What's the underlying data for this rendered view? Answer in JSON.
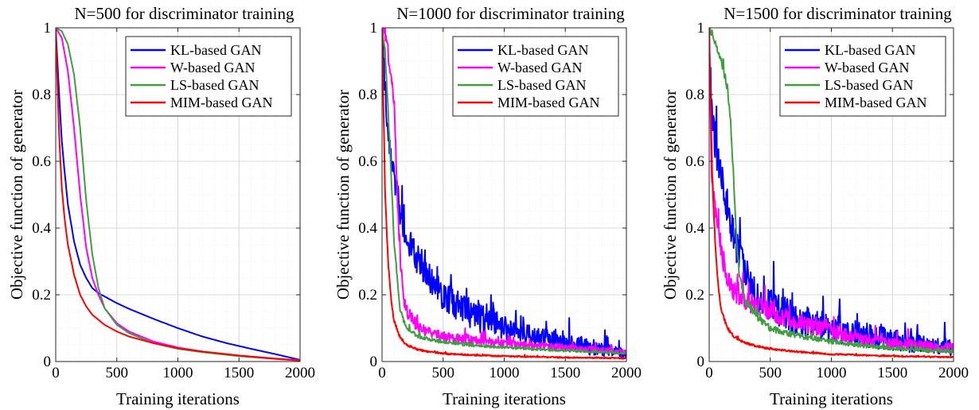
{
  "chart_data": [
    {
      "type": "line",
      "title": "N=500 for discriminator training",
      "xlabel": "Training iterations",
      "ylabel": "Objective function of generator",
      "xlim": [
        0,
        2000
      ],
      "ylim": [
        0,
        1
      ],
      "xticks": [
        "0",
        "500",
        "1000",
        "1500",
        "2000"
      ],
      "yticks": [
        "0",
        "0.2",
        "0.4",
        "0.6",
        "0.8",
        "1"
      ],
      "grid": true,
      "legend_position": "top-right",
      "series": [
        {
          "name": "KL-based GAN",
          "color": "#0000ff",
          "noise": 0,
          "x": [
            0,
            25,
            50,
            75,
            100,
            150,
            200,
            250,
            300,
            350,
            400,
            500,
            600,
            800,
            1000,
            1200,
            1400,
            1600,
            1800,
            2000
          ],
          "y": [
            1.0,
            0.82,
            0.66,
            0.56,
            0.47,
            0.36,
            0.29,
            0.25,
            0.22,
            0.205,
            0.195,
            0.175,
            0.158,
            0.128,
            0.1,
            0.075,
            0.055,
            0.038,
            0.022,
            0.005
          ]
        },
        {
          "name": "W-based GAN",
          "color": "#ff00ff",
          "noise": 0,
          "x": [
            0,
            50,
            100,
            150,
            200,
            250,
            300,
            350,
            400,
            500,
            600,
            800,
            1000,
            1200,
            1500,
            1800,
            2000
          ],
          "y": [
            1.0,
            0.97,
            0.87,
            0.7,
            0.5,
            0.34,
            0.25,
            0.2,
            0.16,
            0.115,
            0.09,
            0.06,
            0.042,
            0.03,
            0.018,
            0.009,
            0.004
          ]
        },
        {
          "name": "LS-based GAN",
          "color": "#3f9f3f",
          "noise": 0,
          "x": [
            0,
            50,
            100,
            150,
            200,
            250,
            300,
            350,
            400,
            500,
            600,
            800,
            1000,
            1200,
            1500,
            1800,
            2000
          ],
          "y": [
            1.0,
            0.99,
            0.95,
            0.86,
            0.7,
            0.48,
            0.32,
            0.22,
            0.16,
            0.11,
            0.085,
            0.055,
            0.038,
            0.028,
            0.016,
            0.008,
            0.003
          ]
        },
        {
          "name": "MIM-based GAN",
          "color": "#ff0000",
          "noise": 0,
          "x": [
            0,
            25,
            50,
            75,
            100,
            150,
            200,
            250,
            300,
            400,
            500,
            600,
            800,
            1000,
            1200,
            1500,
            1800,
            2000
          ],
          "y": [
            1.0,
            0.7,
            0.52,
            0.42,
            0.35,
            0.26,
            0.2,
            0.165,
            0.14,
            0.11,
            0.09,
            0.075,
            0.055,
            0.04,
            0.03,
            0.018,
            0.008,
            0.003
          ]
        }
      ]
    },
    {
      "type": "line",
      "title": "N=1000 for discriminator training",
      "xlabel": "Training iterations",
      "ylabel": "Objective function of generator",
      "xlim": [
        0,
        2000
      ],
      "ylim": [
        0,
        1
      ],
      "xticks": [
        "0",
        "500",
        "1000",
        "1500",
        "2000"
      ],
      "yticks": [
        "0",
        "0.2",
        "0.4",
        "0.6",
        "0.8",
        "1"
      ],
      "grid": true,
      "legend_position": "top-right",
      "series": [
        {
          "name": "KL-based GAN",
          "color": "#0000ff",
          "noise": 0.045,
          "x": [
            0,
            25,
            50,
            75,
            100,
            150,
            200,
            250,
            300,
            400,
            500,
            600,
            700,
            800,
            1000,
            1200,
            1400,
            1600,
            1800,
            2000
          ],
          "y": [
            1.0,
            0.82,
            0.7,
            0.62,
            0.55,
            0.45,
            0.38,
            0.33,
            0.3,
            0.24,
            0.2,
            0.17,
            0.15,
            0.13,
            0.1,
            0.08,
            0.065,
            0.05,
            0.035,
            0.02
          ]
        },
        {
          "name": "W-based GAN",
          "color": "#ff00ff",
          "noise": 0.02,
          "x": [
            0,
            25,
            50,
            75,
            100,
            125,
            150,
            175,
            200,
            300,
            400,
            500,
            700,
            1000,
            1200,
            1500,
            1800,
            2000
          ],
          "y": [
            1.0,
            0.98,
            0.92,
            0.86,
            0.78,
            0.5,
            0.3,
            0.2,
            0.15,
            0.1,
            0.085,
            0.075,
            0.065,
            0.055,
            0.048,
            0.042,
            0.035,
            0.03
          ]
        },
        {
          "name": "LS-based GAN",
          "color": "#3f9f3f",
          "noise": 0.008,
          "x": [
            0,
            25,
            50,
            75,
            100,
            150,
            200,
            300,
            400,
            500,
            700,
            1000,
            1200,
            1500,
            1800,
            2000
          ],
          "y": [
            1.0,
            0.93,
            0.75,
            0.55,
            0.35,
            0.15,
            0.1,
            0.075,
            0.065,
            0.058,
            0.05,
            0.042,
            0.038,
            0.033,
            0.028,
            0.025
          ]
        },
        {
          "name": "MIM-based GAN",
          "color": "#ff0000",
          "noise": 0.006,
          "x": [
            0,
            25,
            50,
            75,
            100,
            150,
            200,
            300,
            400,
            500,
            700,
            1000,
            1500,
            2000
          ],
          "y": [
            1.0,
            0.5,
            0.3,
            0.18,
            0.12,
            0.07,
            0.05,
            0.035,
            0.028,
            0.024,
            0.02,
            0.016,
            0.012,
            0.01
          ]
        }
      ]
    },
    {
      "type": "line",
      "title": "N=1500 for discriminator training",
      "xlabel": "Training iterations",
      "ylabel": "Objective function of generator",
      "xlim": [
        0,
        2000
      ],
      "ylim": [
        0,
        1
      ],
      "xticks": [
        "0",
        "500",
        "1000",
        "1500",
        "2000"
      ],
      "yticks": [
        "0",
        "0.2",
        "0.4",
        "0.6",
        "0.8",
        "1"
      ],
      "grid": true,
      "legend_position": "top-right",
      "series": [
        {
          "name": "KL-based GAN",
          "color": "#0000ff",
          "noise": 0.05,
          "x": [
            0,
            25,
            50,
            75,
            100,
            150,
            200,
            250,
            300,
            400,
            500,
            700,
            1000,
            1200,
            1500,
            1800,
            2000
          ],
          "y": [
            0.92,
            0.75,
            0.65,
            0.6,
            0.55,
            0.45,
            0.38,
            0.31,
            0.26,
            0.2,
            0.17,
            0.13,
            0.1,
            0.085,
            0.065,
            0.05,
            0.04
          ]
        },
        {
          "name": "W-based GAN",
          "color": "#ff00ff",
          "noise": 0.03,
          "x": [
            0,
            20,
            50,
            75,
            100,
            150,
            200,
            300,
            400,
            500,
            700,
            1000,
            1200,
            1500,
            1800,
            2000
          ],
          "y": [
            1.0,
            0.55,
            0.45,
            0.38,
            0.32,
            0.25,
            0.21,
            0.18,
            0.165,
            0.15,
            0.12,
            0.09,
            0.07,
            0.055,
            0.045,
            0.04
          ]
        },
        {
          "name": "LS-based GAN",
          "color": "#3f9f3f",
          "noise": 0.012,
          "x": [
            0,
            25,
            50,
            100,
            150,
            175,
            200,
            225,
            250,
            300,
            400,
            500,
            700,
            1000,
            1200,
            1500,
            1800,
            2000
          ],
          "y": [
            1.0,
            0.98,
            0.95,
            0.9,
            0.82,
            0.72,
            0.55,
            0.35,
            0.25,
            0.18,
            0.13,
            0.1,
            0.08,
            0.06,
            0.05,
            0.04,
            0.033,
            0.03
          ]
        },
        {
          "name": "MIM-based GAN",
          "color": "#ff0000",
          "noise": 0.006,
          "x": [
            0,
            25,
            50,
            75,
            100,
            150,
            200,
            300,
            400,
            500,
            700,
            1000,
            1500,
            2000
          ],
          "y": [
            1.0,
            0.55,
            0.35,
            0.22,
            0.15,
            0.1,
            0.075,
            0.055,
            0.045,
            0.038,
            0.03,
            0.022,
            0.016,
            0.013
          ]
        }
      ]
    }
  ]
}
